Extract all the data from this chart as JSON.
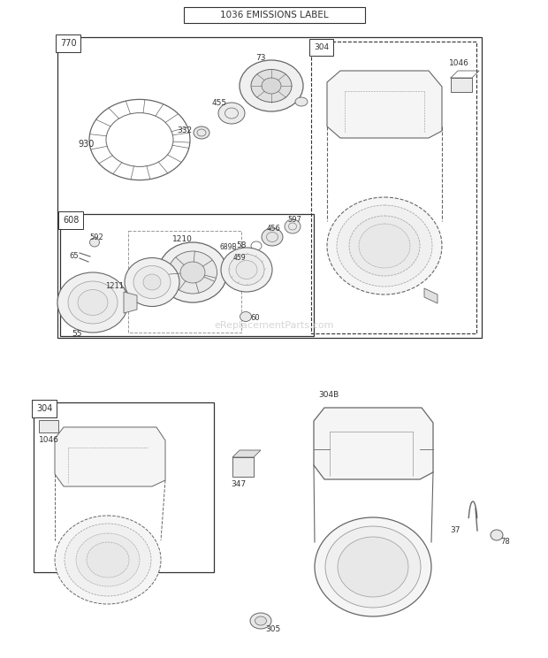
{
  "title": "1036 EMISSIONS LABEL",
  "bg_color": "#ffffff",
  "border_color": "#333333",
  "text_color": "#333333",
  "watermark": "eReplacementParts.com",
  "watermark_color": "#cccccc",
  "figsize": [
    6.2,
    7.44
  ],
  "dpi": 100
}
